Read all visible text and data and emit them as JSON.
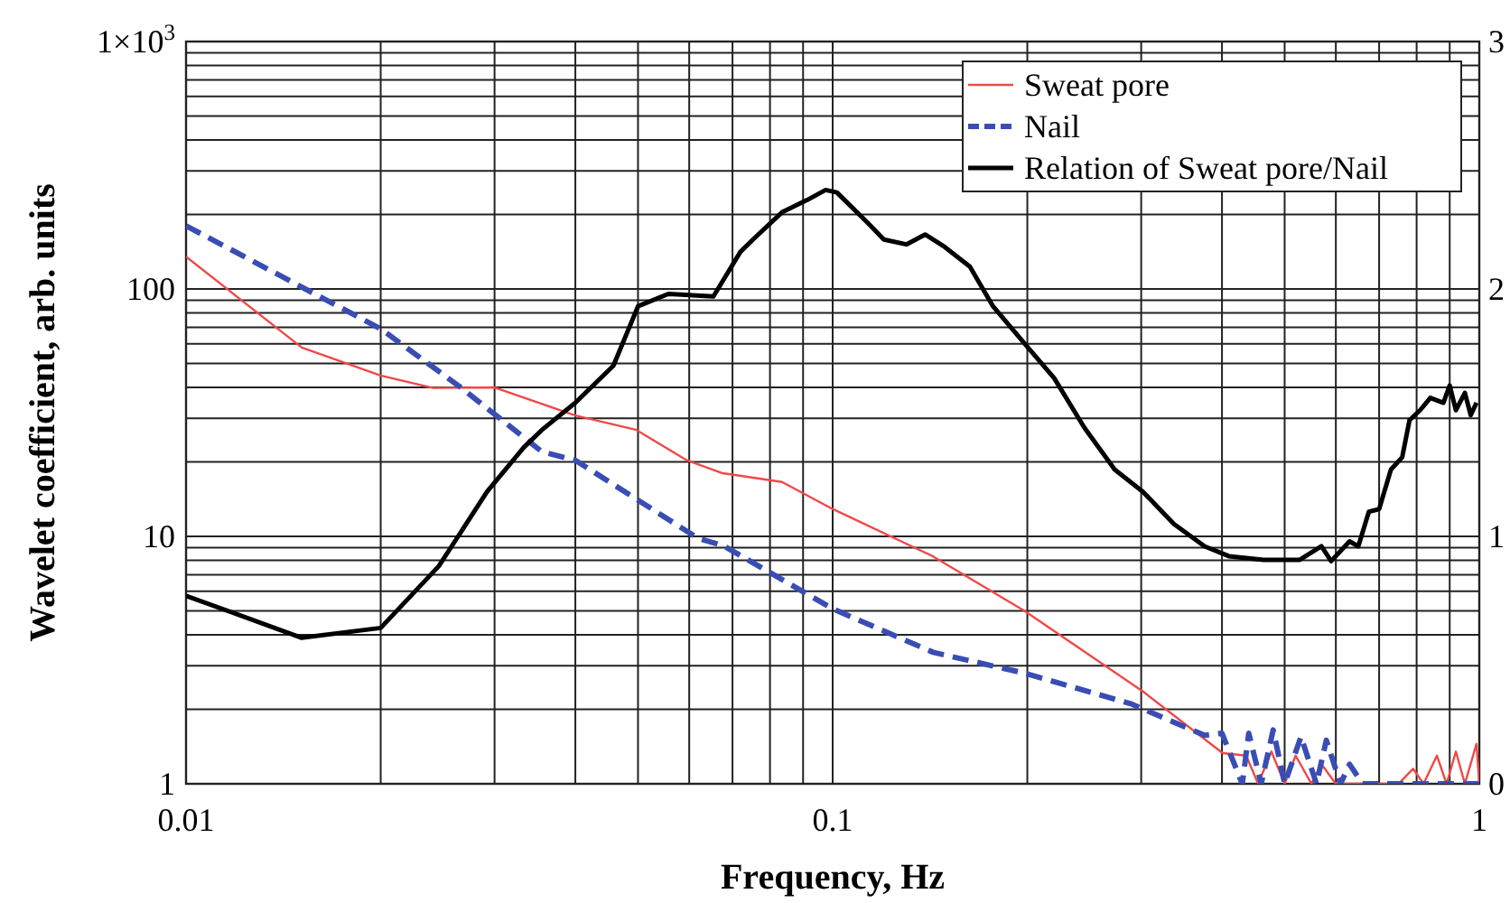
{
  "chart_data": {
    "type": "line",
    "xlabel": "Frequency, Hz",
    "ylabel": "Wavelet coefficient, arb. units",
    "log": "xy",
    "grid": true,
    "legend": "top right",
    "xlim": [
      0.01,
      1
    ],
    "xticks": [
      0.01,
      0.1,
      1
    ],
    "ylim": [
      1,
      1000
    ],
    "yticks": [
      1,
      10,
      100,
      {
        "value": 1000,
        "label": "1×10$^{3}$"
      }
    ],
    "y2lim": [
      0,
      3
    ],
    "y2ticks": [
      0,
      1,
      2,
      3
    ],
    "series": [
      {
        "name": "Sweat pore",
        "color": "#f04848",
        "line_style": "solid",
        "x": [
          0.01,
          0.0151,
          0.02,
          0.0241,
          0.03,
          0.04,
          0.0496,
          0.0595,
          0.0676,
          0.0835,
          0.1,
          0.143,
          0.198,
          0.302,
          0.401,
          0.436,
          0.455,
          0.477,
          0.5,
          0.52,
          0.55,
          0.57,
          0.6,
          0.64,
          0.75,
          0.79,
          0.82,
          0.86,
          0.89,
          0.92,
          0.95,
          0.99,
          1
        ],
        "values": [
          135,
          58,
          44.7,
          39.8,
          40,
          30.8,
          27,
          20.3,
          18,
          16.6,
          12.9,
          8.3,
          5,
          2.36,
          1.33,
          1.3,
          1,
          1.35,
          1,
          1.3,
          1,
          1.2,
          1,
          1,
          1,
          1.15,
          1,
          1.3,
          1,
          1.35,
          1,
          1.45,
          1
        ]
      },
      {
        "name": "Nail",
        "color": "#3a4db5",
        "line_style": "dashed",
        "x": [
          0.01,
          0.02,
          0.0266,
          0.0355,
          0.04,
          0.062,
          0.0676,
          0.1,
          0.143,
          0.198,
          0.29,
          0.376,
          0.4,
          0.43,
          0.44,
          0.46,
          0.48,
          0.5,
          0.53,
          0.56,
          0.58,
          0.61,
          0.63,
          0.66,
          1
        ],
        "values": [
          180,
          69,
          40,
          22,
          20.3,
          9.8,
          9.2,
          5.1,
          3.4,
          2.8,
          2.1,
          1.57,
          1.6,
          1,
          1.6,
          1,
          1.65,
          1,
          1.55,
          1,
          1.5,
          1,
          1.2,
          1,
          1
        ]
      },
      {
        "name": "Relation of Sweat pore/Nail",
        "color": "#000000",
        "line_style": "solid",
        "axis": "y2",
        "x": [
          0.01,
          0.0151,
          0.02,
          0.0246,
          0.0292,
          0.0333,
          0.0355,
          0.04,
          0.0458,
          0.05,
          0.0557,
          0.0654,
          0.072,
          0.0753,
          0.0835,
          0.0914,
          0.0975,
          0.1015,
          0.113,
          0.12,
          0.13,
          0.139,
          0.149,
          0.163,
          0.177,
          0.198,
          0.22,
          0.245,
          0.273,
          0.302,
          0.337,
          0.376,
          0.41,
          0.464,
          0.527,
          0.57,
          0.59,
          0.63,
          0.65,
          0.675,
          0.7,
          0.73,
          0.76,
          0.78,
          0.81,
          0.84,
          0.88,
          0.9,
          0.92,
          0.95,
          0.97,
          0.99
        ],
        "values": [
          0.76,
          0.59,
          0.63,
          0.88,
          1.18,
          1.36,
          1.43,
          1.54,
          1.69,
          1.93,
          1.98,
          1.97,
          2.15,
          2.2,
          2.31,
          2.36,
          2.4,
          2.39,
          2.27,
          2.2,
          2.18,
          2.22,
          2.17,
          2.09,
          1.93,
          1.78,
          1.64,
          1.44,
          1.27,
          1.18,
          1.05,
          0.96,
          0.92,
          0.905,
          0.905,
          0.96,
          0.9,
          0.98,
          0.96,
          1.1,
          1.11,
          1.27,
          1.32,
          1.47,
          1.51,
          1.56,
          1.54,
          1.61,
          1.51,
          1.58,
          1.49,
          1.54
        ]
      }
    ]
  }
}
